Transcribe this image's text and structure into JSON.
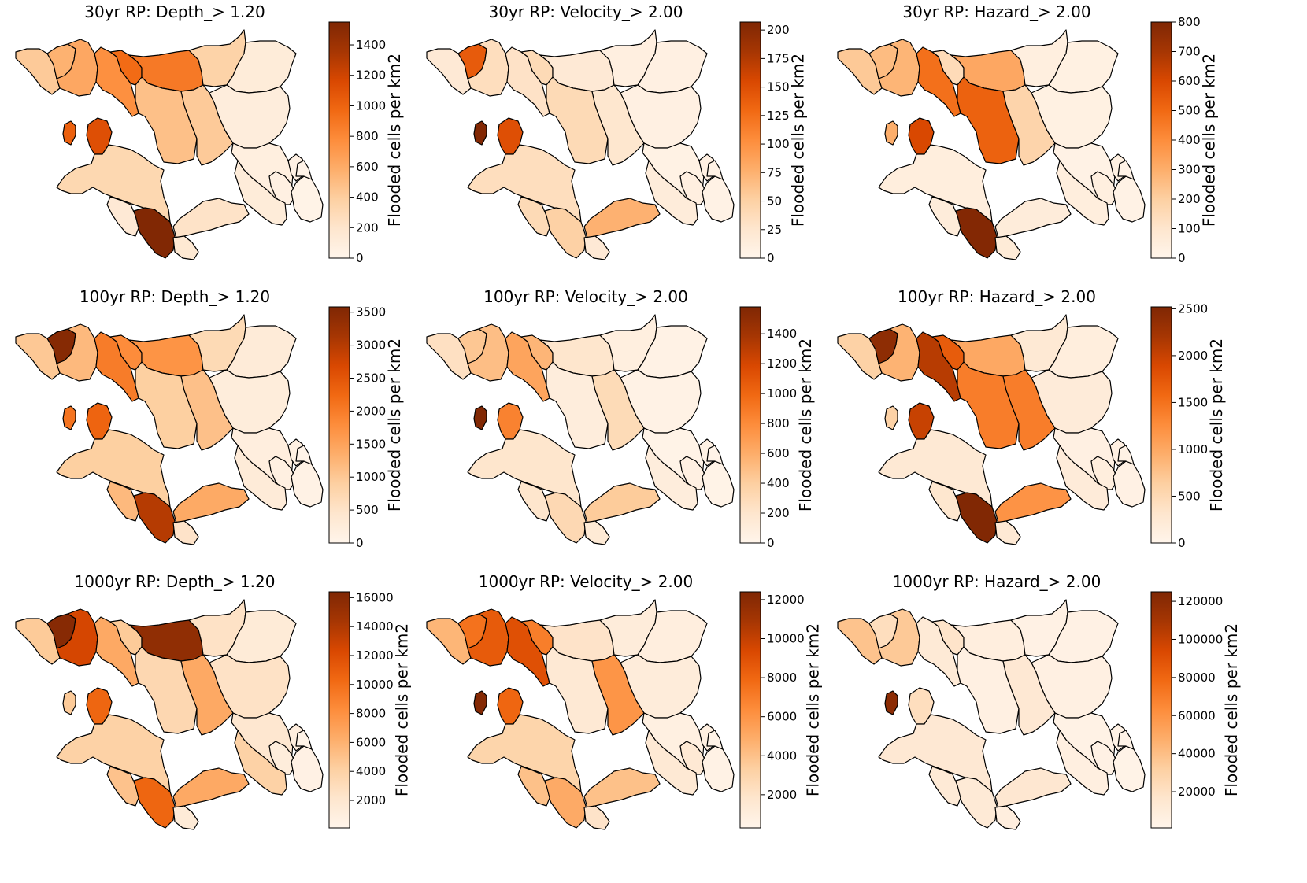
{
  "figure": {
    "colorbar_label": "Flooded cells per km2",
    "colormap": [
      "#fff5eb",
      "#fee6ce",
      "#fdd0a2",
      "#fdae6b",
      "#fd8d3c",
      "#f16913",
      "#d94801",
      "#a63603",
      "#7f2704"
    ],
    "colormap_name": "OrRd-like",
    "edge_color": "#000000"
  },
  "chart_data": [
    {
      "type": "choropleth",
      "title": "30yr RP: Depth_> 1.20",
      "colorbar": {
        "range": [
          0,
          1550
        ],
        "ticks": [
          0,
          200,
          400,
          600,
          800,
          1000,
          1200,
          1400
        ]
      },
      "regions": [
        {
          "id": 1,
          "value": 420
        },
        {
          "id": 2,
          "value": 560
        },
        {
          "id": 3,
          "value": 620
        },
        {
          "id": 4,
          "value": 760
        },
        {
          "id": 5,
          "value": 960
        },
        {
          "id": 6,
          "value": 880
        },
        {
          "id": 7,
          "value": 480
        },
        {
          "id": 8,
          "value": 360
        },
        {
          "id": 9,
          "value": 120
        },
        {
          "id": 10,
          "value": 420
        },
        {
          "id": 11,
          "value": 100
        },
        {
          "id": 12,
          "value": 80
        },
        {
          "id": 13,
          "value": 1020
        },
        {
          "id": 14,
          "value": 1120
        },
        {
          "id": 15,
          "value": 320
        },
        {
          "id": 16,
          "value": 1540
        },
        {
          "id": 17,
          "value": 150
        },
        {
          "id": 18,
          "value": 220
        },
        {
          "id": 19,
          "value": 160
        },
        {
          "id": 20,
          "value": 60
        },
        {
          "id": 21,
          "value": 120
        },
        {
          "id": 22,
          "value": 50
        },
        {
          "id": 23,
          "value": 30
        },
        {
          "id": 24,
          "value": 20
        }
      ]
    },
    {
      "type": "choropleth",
      "title": "30yr RP: Velocity_> 2.00",
      "colorbar": {
        "range": [
          0,
          207
        ],
        "ticks": [
          0,
          25,
          50,
          75,
          100,
          125,
          150,
          175,
          200
        ]
      },
      "regions": [
        {
          "id": 1,
          "value": 20
        },
        {
          "id": 2,
          "value": 140
        },
        {
          "id": 3,
          "value": 35
        },
        {
          "id": 4,
          "value": 30
        },
        {
          "id": 5,
          "value": 40
        },
        {
          "id": 6,
          "value": 20
        },
        {
          "id": 7,
          "value": 40
        },
        {
          "id": 8,
          "value": 10
        },
        {
          "id": 9,
          "value": 8
        },
        {
          "id": 10,
          "value": 25
        },
        {
          "id": 11,
          "value": 8
        },
        {
          "id": 12,
          "value": 6
        },
        {
          "id": 13,
          "value": 205
        },
        {
          "id": 14,
          "value": 150
        },
        {
          "id": 15,
          "value": 35
        },
        {
          "id": 16,
          "value": 50
        },
        {
          "id": 17,
          "value": 40
        },
        {
          "id": 18,
          "value": 75
        },
        {
          "id": 19,
          "value": 20
        },
        {
          "id": 20,
          "value": 10
        },
        {
          "id": 21,
          "value": 15
        },
        {
          "id": 22,
          "value": 8
        },
        {
          "id": 23,
          "value": 5
        },
        {
          "id": 24,
          "value": 5
        }
      ]
    },
    {
      "type": "choropleth",
      "title": "30yr RP: Hazard_> 2.00",
      "colorbar": {
        "range": [
          0,
          800
        ],
        "ticks": [
          0,
          100,
          200,
          300,
          400,
          500,
          600,
          700,
          800
        ]
      },
      "regions": [
        {
          "id": 1,
          "value": 220
        },
        {
          "id": 2,
          "value": 260
        },
        {
          "id": 3,
          "value": 280
        },
        {
          "id": 4,
          "value": 480
        },
        {
          "id": 5,
          "value": 150
        },
        {
          "id": 6,
          "value": 320
        },
        {
          "id": 7,
          "value": 520
        },
        {
          "id": 8,
          "value": 40
        },
        {
          "id": 9,
          "value": 30
        },
        {
          "id": 10,
          "value": 180
        },
        {
          "id": 11,
          "value": 30
        },
        {
          "id": 12,
          "value": 20
        },
        {
          "id": 13,
          "value": 300
        },
        {
          "id": 14,
          "value": 600
        },
        {
          "id": 15,
          "value": 50
        },
        {
          "id": 16,
          "value": 790
        },
        {
          "id": 17,
          "value": 60
        },
        {
          "id": 18,
          "value": 60
        },
        {
          "id": 19,
          "value": 70
        },
        {
          "id": 20,
          "value": 40
        },
        {
          "id": 21,
          "value": 50
        },
        {
          "id": 22,
          "value": 30
        },
        {
          "id": 23,
          "value": 20
        },
        {
          "id": 24,
          "value": 15
        }
      ]
    },
    {
      "type": "choropleth",
      "title": "100yr RP: Depth_> 1.20",
      "colorbar": {
        "range": [
          0,
          3580
        ],
        "ticks": [
          0,
          500,
          1000,
          1500,
          2000,
          2500,
          3000,
          3500
        ]
      },
      "regions": [
        {
          "id": 1,
          "value": 1000
        },
        {
          "id": 2,
          "value": 3500
        },
        {
          "id": 3,
          "value": 1200
        },
        {
          "id": 4,
          "value": 2000
        },
        {
          "id": 5,
          "value": 1800
        },
        {
          "id": 6,
          "value": 1700
        },
        {
          "id": 7,
          "value": 900
        },
        {
          "id": 8,
          "value": 700
        },
        {
          "id": 9,
          "value": 300
        },
        {
          "id": 10,
          "value": 1100
        },
        {
          "id": 11,
          "value": 250
        },
        {
          "id": 12,
          "value": 200
        },
        {
          "id": 13,
          "value": 2100
        },
        {
          "id": 14,
          "value": 2300
        },
        {
          "id": 15,
          "value": 900
        },
        {
          "id": 16,
          "value": 3000
        },
        {
          "id": 17,
          "value": 1200
        },
        {
          "id": 18,
          "value": 1400
        },
        {
          "id": 19,
          "value": 500
        },
        {
          "id": 20,
          "value": 150
        },
        {
          "id": 21,
          "value": 300
        },
        {
          "id": 22,
          "value": 120
        },
        {
          "id": 23,
          "value": 100
        },
        {
          "id": 24,
          "value": 50
        }
      ]
    },
    {
      "type": "choropleth",
      "title": "100yr RP: Velocity_> 2.00",
      "colorbar": {
        "range": [
          0,
          1580
        ],
        "ticks": [
          0,
          200,
          400,
          600,
          800,
          1000,
          1200,
          1400
        ]
      },
      "regions": [
        {
          "id": 1,
          "value": 250
        },
        {
          "id": 2,
          "value": 450
        },
        {
          "id": 3,
          "value": 500
        },
        {
          "id": 4,
          "value": 650
        },
        {
          "id": 5,
          "value": 550
        },
        {
          "id": 6,
          "value": 200
        },
        {
          "id": 7,
          "value": 100
        },
        {
          "id": 8,
          "value": 80
        },
        {
          "id": 9,
          "value": 40
        },
        {
          "id": 10,
          "value": 300
        },
        {
          "id": 11,
          "value": 40
        },
        {
          "id": 12,
          "value": 30
        },
        {
          "id": 13,
          "value": 1570
        },
        {
          "id": 14,
          "value": 850
        },
        {
          "id": 15,
          "value": 200
        },
        {
          "id": 16,
          "value": 320
        },
        {
          "id": 17,
          "value": 200
        },
        {
          "id": 18,
          "value": 420
        },
        {
          "id": 19,
          "value": 150
        },
        {
          "id": 20,
          "value": 60
        },
        {
          "id": 21,
          "value": 100
        },
        {
          "id": 22,
          "value": 40
        },
        {
          "id": 23,
          "value": 30
        },
        {
          "id": 24,
          "value": 20
        }
      ]
    },
    {
      "type": "choropleth",
      "title": "100yr RP: Hazard_> 2.00",
      "colorbar": {
        "range": [
          0,
          2520
        ],
        "ticks": [
          0,
          500,
          1000,
          1500,
          2000,
          2500
        ]
      },
      "regions": [
        {
          "id": 1,
          "value": 600
        },
        {
          "id": 2,
          "value": 2400
        },
        {
          "id": 3,
          "value": 900
        },
        {
          "id": 4,
          "value": 2100
        },
        {
          "id": 5,
          "value": 1700
        },
        {
          "id": 6,
          "value": 1000
        },
        {
          "id": 7,
          "value": 1400
        },
        {
          "id": 8,
          "value": 250
        },
        {
          "id": 9,
          "value": 150
        },
        {
          "id": 10,
          "value": 1400
        },
        {
          "id": 11,
          "value": 200
        },
        {
          "id": 12,
          "value": 100
        },
        {
          "id": 13,
          "value": 600
        },
        {
          "id": 14,
          "value": 2000
        },
        {
          "id": 15,
          "value": 250
        },
        {
          "id": 16,
          "value": 2500
        },
        {
          "id": 17,
          "value": 300
        },
        {
          "id": 18,
          "value": 1200
        },
        {
          "id": 19,
          "value": 250
        },
        {
          "id": 20,
          "value": 150
        },
        {
          "id": 21,
          "value": 200
        },
        {
          "id": 22,
          "value": 100
        },
        {
          "id": 23,
          "value": 80
        },
        {
          "id": 24,
          "value": 60
        }
      ]
    },
    {
      "type": "choropleth",
      "title": "1000yr RP: Depth_> 1.20",
      "colorbar": {
        "range": [
          100,
          16400
        ],
        "ticks": [
          2000,
          4000,
          6000,
          8000,
          10000,
          12000,
          14000,
          16000
        ]
      },
      "regions": [
        {
          "id": 1,
          "value": 4500
        },
        {
          "id": 2,
          "value": 16000
        },
        {
          "id": 3,
          "value": 12500
        },
        {
          "id": 4,
          "value": 6500
        },
        {
          "id": 5,
          "value": 4500
        },
        {
          "id": 6,
          "value": 15500
        },
        {
          "id": 7,
          "value": 3500
        },
        {
          "id": 8,
          "value": 2500
        },
        {
          "id": 9,
          "value": 1500
        },
        {
          "id": 10,
          "value": 6500
        },
        {
          "id": 11,
          "value": 2500
        },
        {
          "id": 12,
          "value": 2000
        },
        {
          "id": 13,
          "value": 4500
        },
        {
          "id": 14,
          "value": 10500
        },
        {
          "id": 15,
          "value": 4000
        },
        {
          "id": 16,
          "value": 10500
        },
        {
          "id": 17,
          "value": 5000
        },
        {
          "id": 18,
          "value": 6500
        },
        {
          "id": 19,
          "value": 1500
        },
        {
          "id": 20,
          "value": 1200
        },
        {
          "id": 21,
          "value": 4000
        },
        {
          "id": 22,
          "value": 1000
        },
        {
          "id": 23,
          "value": 600
        },
        {
          "id": 24,
          "value": 400
        }
      ]
    },
    {
      "type": "choropleth",
      "title": "1000yr RP: Velocity_> 2.00",
      "colorbar": {
        "range": [
          300,
          12400
        ],
        "ticks": [
          2000,
          4000,
          6000,
          8000,
          10000,
          12000
        ]
      },
      "regions": [
        {
          "id": 1,
          "value": 4500
        },
        {
          "id": 2,
          "value": 7500
        },
        {
          "id": 3,
          "value": 8500
        },
        {
          "id": 4,
          "value": 9000
        },
        {
          "id": 5,
          "value": 7000
        },
        {
          "id": 6,
          "value": 2000
        },
        {
          "id": 7,
          "value": 1500
        },
        {
          "id": 8,
          "value": 1200
        },
        {
          "id": 9,
          "value": 1000
        },
        {
          "id": 10,
          "value": 6000
        },
        {
          "id": 11,
          "value": 1200
        },
        {
          "id": 12,
          "value": 800
        },
        {
          "id": 13,
          "value": 12200
        },
        {
          "id": 14,
          "value": 8000
        },
        {
          "id": 15,
          "value": 3000
        },
        {
          "id": 16,
          "value": 5000
        },
        {
          "id": 17,
          "value": 4000
        },
        {
          "id": 18,
          "value": 4000
        },
        {
          "id": 19,
          "value": 2000
        },
        {
          "id": 20,
          "value": 1500
        },
        {
          "id": 21,
          "value": 1500
        },
        {
          "id": 22,
          "value": 800
        },
        {
          "id": 23,
          "value": 600
        },
        {
          "id": 24,
          "value": 500
        }
      ]
    },
    {
      "type": "choropleth",
      "title": "1000yr RP: Hazard_> 2.00",
      "colorbar": {
        "range": [
          1000,
          125000
        ],
        "ticks": [
          20000,
          40000,
          60000,
          80000,
          100000,
          120000
        ]
      },
      "regions": [
        {
          "id": 1,
          "value": 38000
        },
        {
          "id": 2,
          "value": 22000
        },
        {
          "id": 3,
          "value": 35000
        },
        {
          "id": 4,
          "value": 12000
        },
        {
          "id": 5,
          "value": 18000
        },
        {
          "id": 6,
          "value": 8000
        },
        {
          "id": 7,
          "value": 6000
        },
        {
          "id": 8,
          "value": 5000
        },
        {
          "id": 9,
          "value": 5000
        },
        {
          "id": 10,
          "value": 14000
        },
        {
          "id": 11,
          "value": 6000
        },
        {
          "id": 12,
          "value": 4000
        },
        {
          "id": 13,
          "value": 120000
        },
        {
          "id": 14,
          "value": 22000
        },
        {
          "id": 15,
          "value": 14000
        },
        {
          "id": 16,
          "value": 12000
        },
        {
          "id": 17,
          "value": 12000
        },
        {
          "id": 18,
          "value": 15000
        },
        {
          "id": 19,
          "value": 8000
        },
        {
          "id": 20,
          "value": 5000
        },
        {
          "id": 21,
          "value": 7000
        },
        {
          "id": 22,
          "value": 4000
        },
        {
          "id": 23,
          "value": 3000
        },
        {
          "id": 24,
          "value": 3000
        }
      ]
    }
  ]
}
